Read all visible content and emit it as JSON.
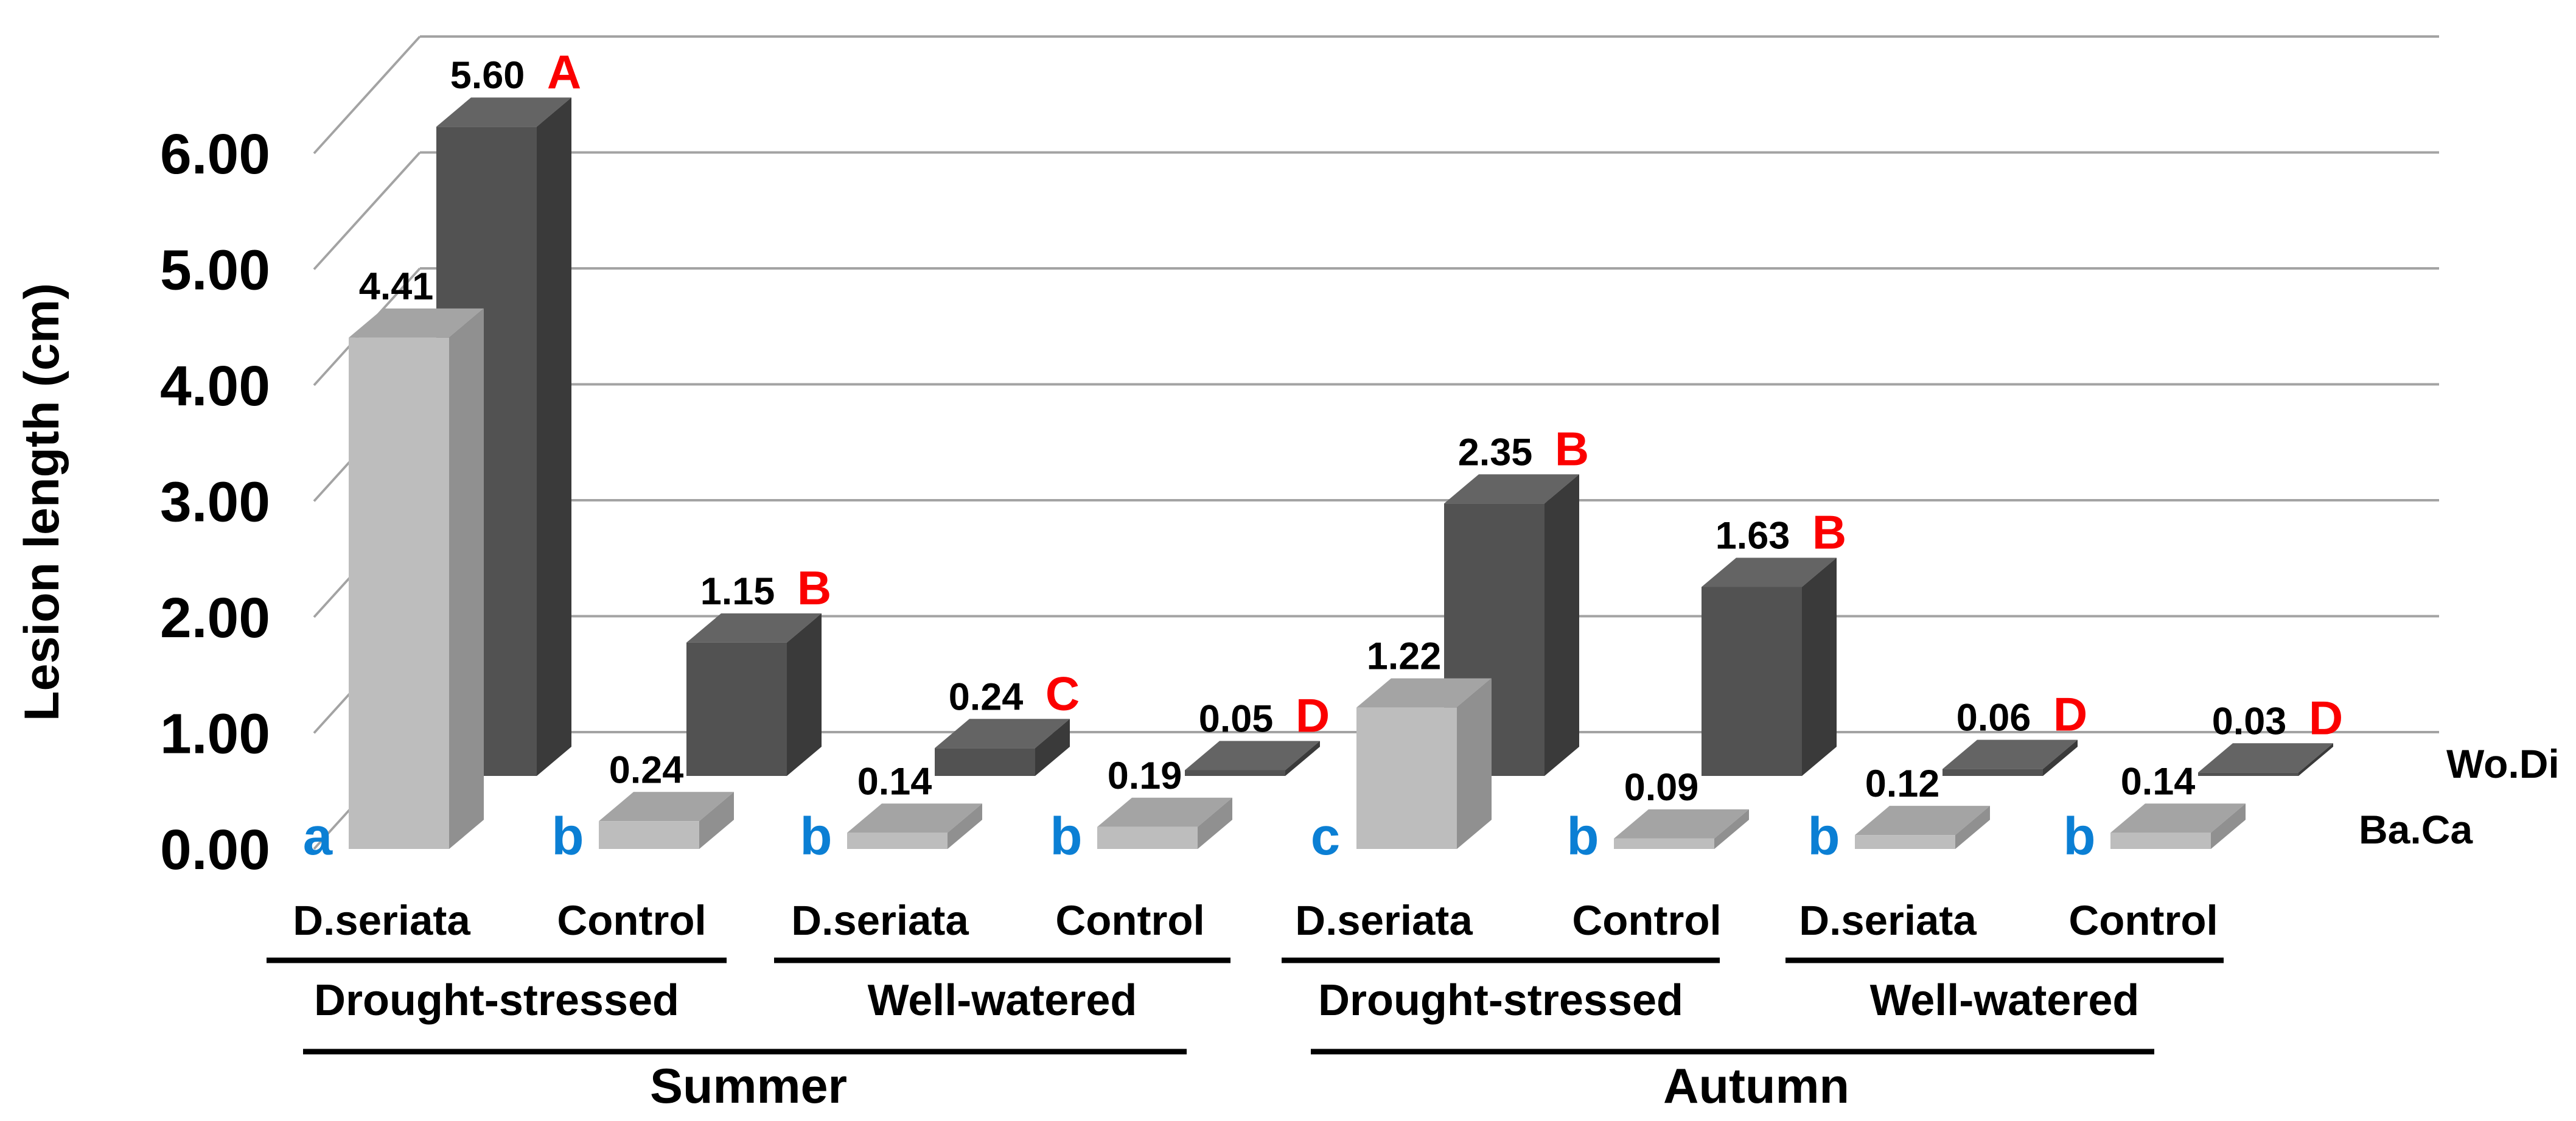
{
  "chart_data": {
    "type": "bar",
    "projection": "3d",
    "title": "",
    "ylabel": "Lesion length (cm)",
    "ylim": [
      0,
      6
    ],
    "ytick_step": 1.0,
    "ytick_labels": [
      "0.00",
      "1.00",
      "2.00",
      "3.00",
      "4.00",
      "5.00",
      "6.00"
    ],
    "grid": true,
    "legend_position": "right-of-plot-floor",
    "category_tier1": [
      "D.seriata",
      "Control",
      "D.seriata",
      "Control",
      "D.seriata",
      "Control",
      "D.seriata",
      "Control"
    ],
    "category_tier2": [
      "Drought-stressed",
      "Well-watered",
      "Drought-stressed",
      "Well-watered"
    ],
    "category_tier3": [
      "Summer",
      "Autumn"
    ],
    "series": [
      {
        "name": "Wo.Di",
        "row": "back",
        "values": [
          5.6,
          1.15,
          0.24,
          0.05,
          2.35,
          1.63,
          0.06,
          0.03
        ],
        "value_labels": [
          "5.60",
          "1.15",
          "0.24",
          "0.05",
          "2.35",
          "1.63",
          "0.06",
          "0.03"
        ],
        "sig_letters": [
          "A",
          "B",
          "C",
          "D",
          "B",
          "B",
          "D",
          "D"
        ],
        "sig_letter_color": "#fb0000",
        "front_color": "#525252",
        "top_color": "#646464",
        "side_color": "#3a3a3a"
      },
      {
        "name": "Ba.Ca",
        "row": "front",
        "values": [
          4.41,
          0.24,
          0.14,
          0.19,
          1.22,
          0.09,
          0.12,
          0.14
        ],
        "value_labels": [
          "4.41",
          "0.24",
          "0.14",
          "0.19",
          "1.22",
          "0.09",
          "0.12",
          "0.14"
        ],
        "sig_letters": [
          "a",
          "b",
          "b",
          "b",
          "c",
          "b",
          "b",
          "b"
        ],
        "sig_letter_color": "#0b7fd4",
        "front_color": "#bdbdbd",
        "top_color": "#a4a4a4",
        "side_color": "#909090"
      }
    ],
    "value_label_color": "#000000",
    "axis_text_color": "#000000",
    "gridline_color": "#a3a3a3",
    "group_underline_color": "#000000"
  }
}
